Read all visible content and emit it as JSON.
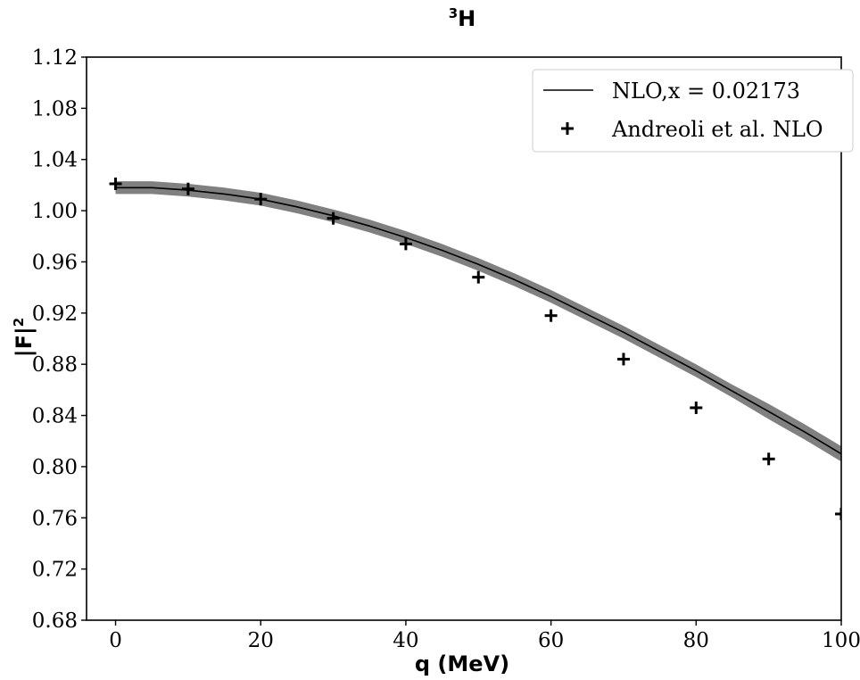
{
  "chart_data": {
    "type": "line",
    "title": {
      "sup": "3",
      "main": "H"
    },
    "xlabel": "q (MeV)",
    "ylabel": {
      "main": "|F|",
      "sup": "2"
    },
    "xlim": [
      -4,
      100
    ],
    "ylim": [
      0.68,
      1.12
    ],
    "x_ticks": [
      0,
      20,
      40,
      60,
      80,
      100
    ],
    "x_tick_labels": [
      "0",
      "20",
      "40",
      "60",
      "80",
      "100"
    ],
    "y_ticks": [
      0.68,
      0.72,
      0.76,
      0.8,
      0.84,
      0.88,
      0.92,
      0.96,
      1.0,
      1.04,
      1.08,
      1.12
    ],
    "y_tick_labels": [
      "0.68",
      "0.72",
      "0.76",
      "0.80",
      "0.84",
      "0.88",
      "0.92",
      "0.96",
      "1.00",
      "1.04",
      "1.08",
      "1.12"
    ],
    "grid": false,
    "legend_position": "top-right",
    "series": [
      {
        "name": "NLO,x = 0.02173",
        "kind": "line",
        "color": "#000000",
        "band_color": "#808080",
        "x": [
          0,
          5,
          10,
          15,
          20,
          25,
          30,
          35,
          40,
          45,
          50,
          55,
          60,
          65,
          70,
          75,
          80,
          85,
          90,
          95,
          100
        ],
        "y": [
          1.018,
          1.018,
          1.016,
          1.013,
          1.009,
          1.003,
          0.996,
          0.988,
          0.979,
          0.969,
          0.958,
          0.946,
          0.933,
          0.919,
          0.905,
          0.89,
          0.875,
          0.859,
          0.843,
          0.827,
          0.81
        ],
        "band_half_width": [
          0.005,
          0.005,
          0.005,
          0.005,
          0.005,
          0.005,
          0.005,
          0.005,
          0.005,
          0.005,
          0.005,
          0.005,
          0.005,
          0.005,
          0.005,
          0.005,
          0.005,
          0.005,
          0.006,
          0.006,
          0.006
        ]
      },
      {
        "name": "Andreoli et al. NLO",
        "kind": "scatter",
        "marker": "plus",
        "color": "#000000",
        "x": [
          0,
          10,
          20,
          30,
          40,
          50,
          60,
          70,
          80,
          90,
          100
        ],
        "y": [
          1.021,
          1.017,
          1.009,
          0.994,
          0.974,
          0.948,
          0.918,
          0.884,
          0.846,
          0.806,
          0.763
        ]
      }
    ]
  }
}
